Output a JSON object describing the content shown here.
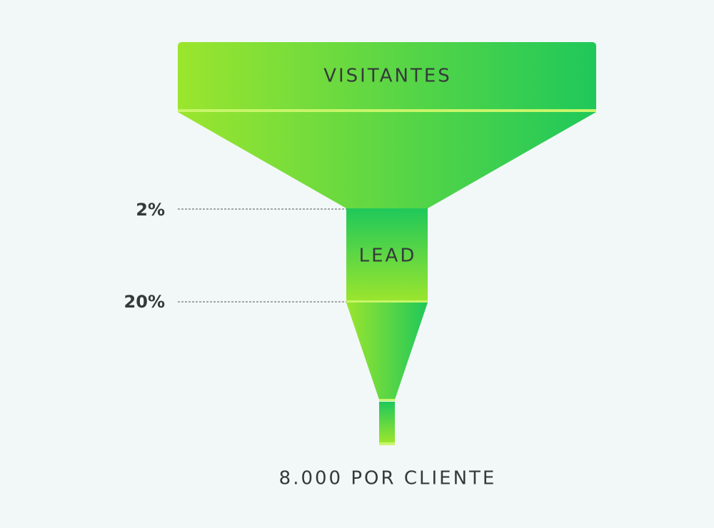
{
  "stages": [
    {
      "label": "VISITANTES"
    },
    {
      "label": "LEAD"
    }
  ],
  "rates": [
    "2%",
    "20%"
  ],
  "footer": "8.000 POR CLIENTE"
}
